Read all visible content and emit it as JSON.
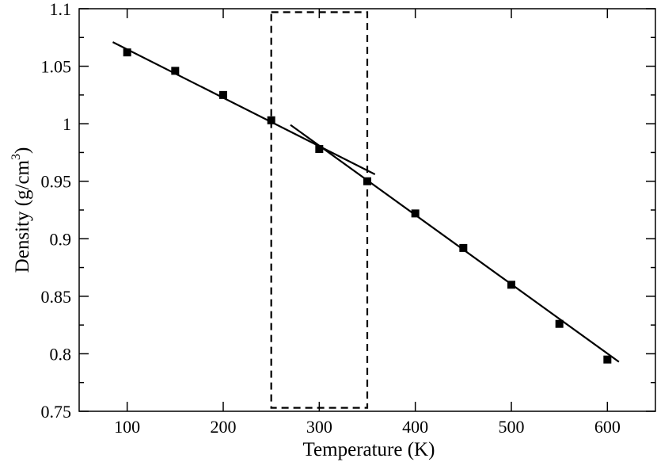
{
  "chart_data": {
    "type": "scatter",
    "xlabel": "Temperature (K)",
    "ylabel": {
      "prefix": "Density (g/cm",
      "sup": "3",
      "suffix": ")"
    },
    "xlim": [
      50,
      650
    ],
    "ylim": [
      0.75,
      1.1
    ],
    "xticks": [
      100,
      200,
      300,
      400,
      500,
      600
    ],
    "xtick_labels": [
      "100",
      "200",
      "300",
      "400",
      "500",
      "600"
    ],
    "yticks": [
      0.75,
      0.8,
      0.85,
      0.9,
      0.95,
      1.0,
      1.05,
      1.1
    ],
    "ytick_labels": [
      "0.75",
      "0.8",
      "0.85",
      "0.9",
      "0.95",
      "1",
      "1.05",
      "1.1"
    ],
    "grid": false,
    "series": [
      {
        "marker": "square",
        "x": [
          100,
          150,
          200,
          250,
          300,
          350,
          400,
          450,
          500,
          550,
          600
        ],
        "y": [
          1.062,
          1.046,
          1.025,
          1.003,
          0.978,
          0.95,
          0.922,
          0.892,
          0.86,
          0.826,
          0.795
        ]
      }
    ],
    "fit_lines": [
      {
        "x": [
          85,
          358
        ],
        "y": [
          1.071,
          0.956
        ]
      },
      {
        "x": [
          270,
          612
        ],
        "y": [
          0.999,
          0.793
        ]
      }
    ],
    "region_box": {
      "x": [
        250,
        350
      ],
      "y": [
        0.753,
        1.097
      ]
    },
    "colors": {
      "marks": "#000000",
      "background": "#ffffff"
    }
  }
}
